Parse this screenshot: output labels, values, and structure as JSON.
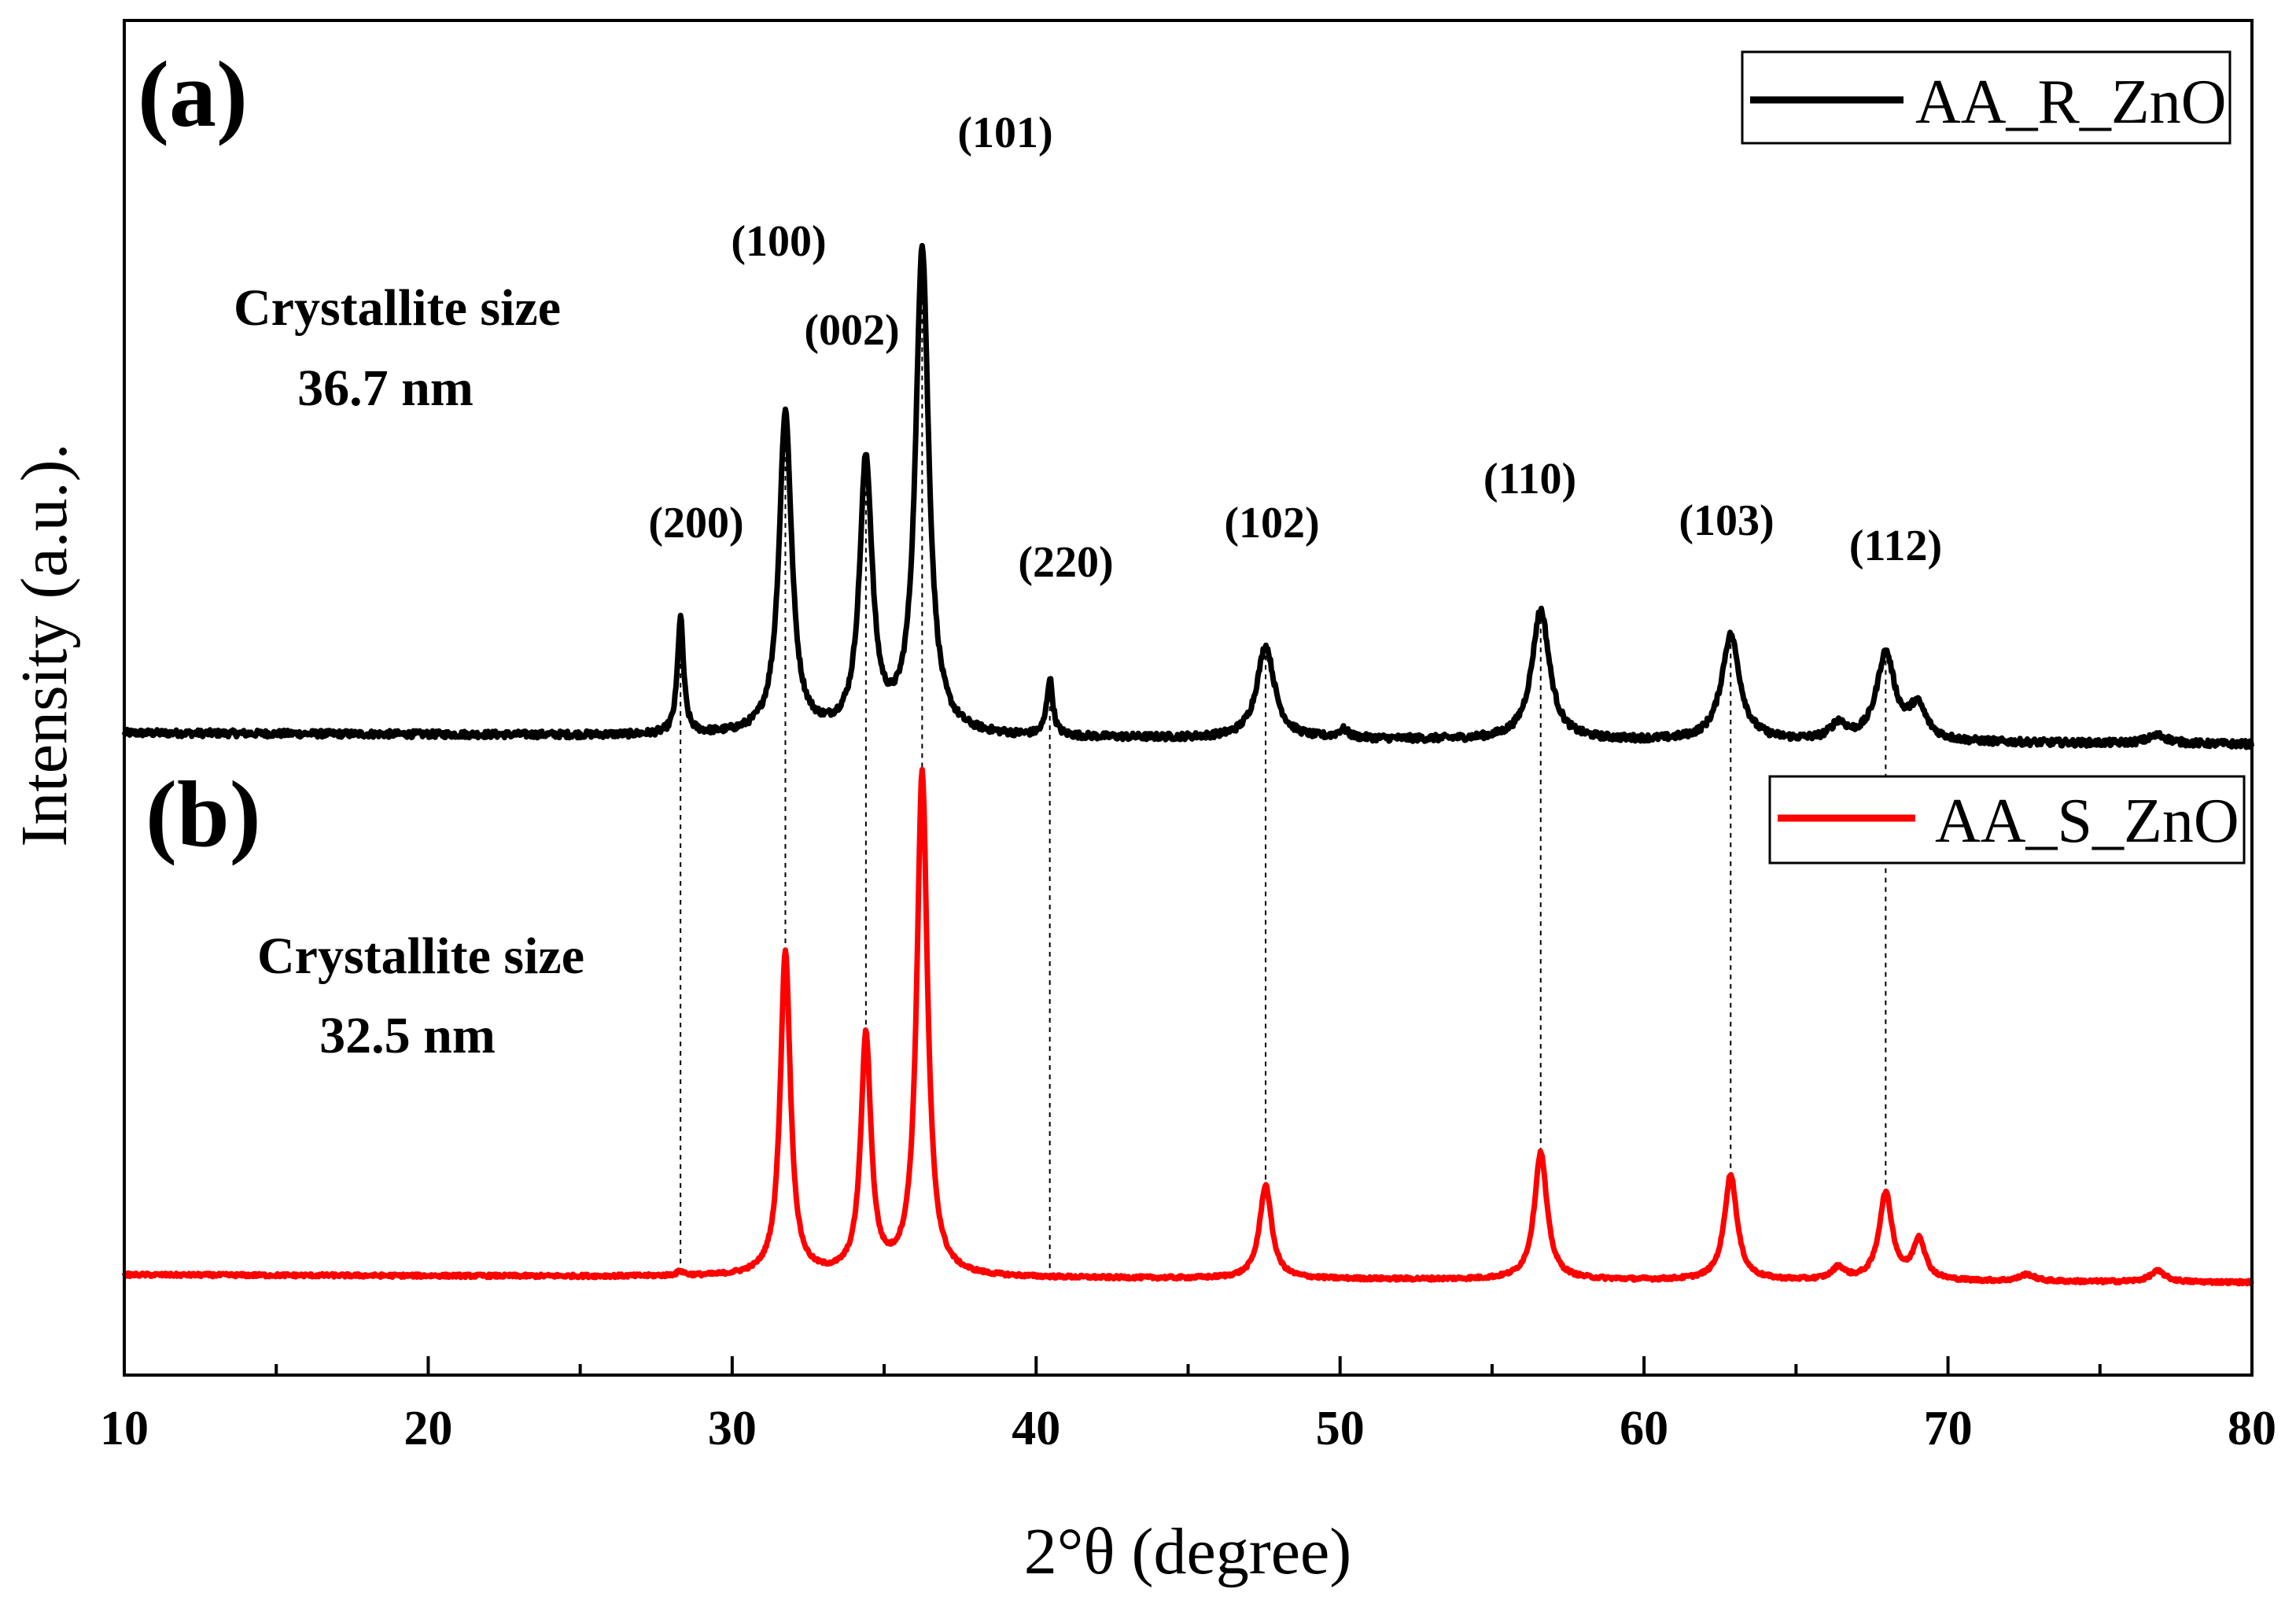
{
  "chart_data": {
    "type": "line",
    "xlabel": "2°θ (degree)",
    "ylabel": "Intensity (a.u.).",
    "xlim": [
      10,
      80
    ],
    "ylim": [
      0,
      100
    ],
    "xticks": [
      "10",
      "20",
      "30",
      "40",
      "50",
      "60",
      "70",
      "80"
    ],
    "reference_lines_x": [
      28.3,
      31.75,
      34.4,
      36.25,
      40.45,
      47.55,
      56.6,
      62.85,
      67.95
    ],
    "panels": [
      {
        "label": "(a)",
        "legend": "AA_R_ZnO",
        "color": "#000000",
        "annotation_title": "Crystallite size",
        "annotation_value": "36.7 nm",
        "baseline": 47.4,
        "baseline_slope": -0.012,
        "noise": 0.25,
        "peaks": [
          {
            "x": 28.3,
            "height": 8.6,
            "width": 0.12,
            "label": "(200)"
          },
          {
            "x": 31.75,
            "height": 23.8,
            "width": 0.25,
            "label": "(100)"
          },
          {
            "x": 34.4,
            "height": 20.0,
            "width": 0.25,
            "label": "(002)"
          },
          {
            "x": 36.25,
            "height": 36.0,
            "width": 0.26,
            "label": "(101)"
          },
          {
            "x": 40.45,
            "height": 4.2,
            "width": 0.12,
            "label": "(220)"
          },
          {
            "x": 47.55,
            "height": 6.8,
            "width": 0.35,
            "label": "(102)"
          },
          {
            "x": 56.6,
            "height": 9.6,
            "width": 0.35,
            "label": "(110)"
          },
          {
            "x": 62.85,
            "height": 7.8,
            "width": 0.36,
            "label": "(103)"
          },
          {
            "x": 67.95,
            "height": 6.4,
            "width": 0.36,
            "label": "(112)"
          },
          {
            "x": 66.4,
            "height": 1.2,
            "width": 0.3
          },
          {
            "x": 69.0,
            "height": 2.4,
            "width": 0.35
          },
          {
            "x": 50.1,
            "height": 0.6,
            "width": 0.2
          },
          {
            "x": 76.9,
            "height": 0.6,
            "width": 0.4
          }
        ]
      },
      {
        "label": "(b)",
        "legend": "AA_S_ZnO",
        "color": "#ff0000",
        "annotation_title": "Crystallite size",
        "annotation_value": "32.5 nm",
        "baseline": 7.4,
        "baseline_slope": -0.008,
        "noise": 0.12,
        "peaks": [
          {
            "x": 28.3,
            "height": 0.3,
            "width": 0.15
          },
          {
            "x": 31.75,
            "height": 24.0,
            "width": 0.2
          },
          {
            "x": 34.4,
            "height": 17.6,
            "width": 0.2
          },
          {
            "x": 36.25,
            "height": 37.2,
            "width": 0.21
          },
          {
            "x": 47.55,
            "height": 6.9,
            "width": 0.24
          },
          {
            "x": 56.6,
            "height": 9.4,
            "width": 0.25
          },
          {
            "x": 62.85,
            "height": 7.8,
            "width": 0.25
          },
          {
            "x": 67.95,
            "height": 6.4,
            "width": 0.26
          },
          {
            "x": 69.05,
            "height": 3.0,
            "width": 0.24
          },
          {
            "x": 66.4,
            "height": 0.9,
            "width": 0.25
          },
          {
            "x": 72.6,
            "height": 0.5,
            "width": 0.3
          },
          {
            "x": 76.9,
            "height": 0.8,
            "width": 0.3
          }
        ]
      }
    ]
  }
}
